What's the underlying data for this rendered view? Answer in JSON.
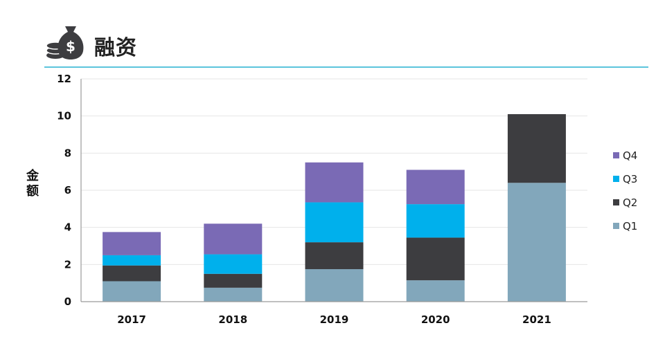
{
  "header": {
    "title": "融资",
    "icon": "money-bag-coins-icon"
  },
  "colors": {
    "Q1": "#82a7bb",
    "Q2": "#3d3d40",
    "Q3": "#00b0ec",
    "Q4": "#7a6ab5",
    "accent_rule": "#5bc4dc",
    "icon": "#3d3d40"
  },
  "chart_data": {
    "type": "bar",
    "stacked": true,
    "categories": [
      "2017",
      "2018",
      "2019",
      "2020",
      "2021"
    ],
    "series": [
      {
        "name": "Q1",
        "values": [
          1.1,
          0.75,
          1.75,
          1.15,
          6.4
        ]
      },
      {
        "name": "Q2",
        "values": [
          0.85,
          0.75,
          1.45,
          2.3,
          3.7
        ]
      },
      {
        "name": "Q3",
        "values": [
          0.55,
          1.05,
          2.15,
          1.8,
          0
        ]
      },
      {
        "name": "Q4",
        "values": [
          1.25,
          1.65,
          2.15,
          1.85,
          0
        ]
      }
    ],
    "ylabel": "金额",
    "xlabel": "",
    "ylim": [
      0,
      12
    ],
    "yticks": [
      "0",
      "2",
      "4",
      "6",
      "8",
      "10",
      "12"
    ],
    "grid": true,
    "legend": "right",
    "legend_order": [
      "Q4",
      "Q3",
      "Q2",
      "Q1"
    ]
  }
}
